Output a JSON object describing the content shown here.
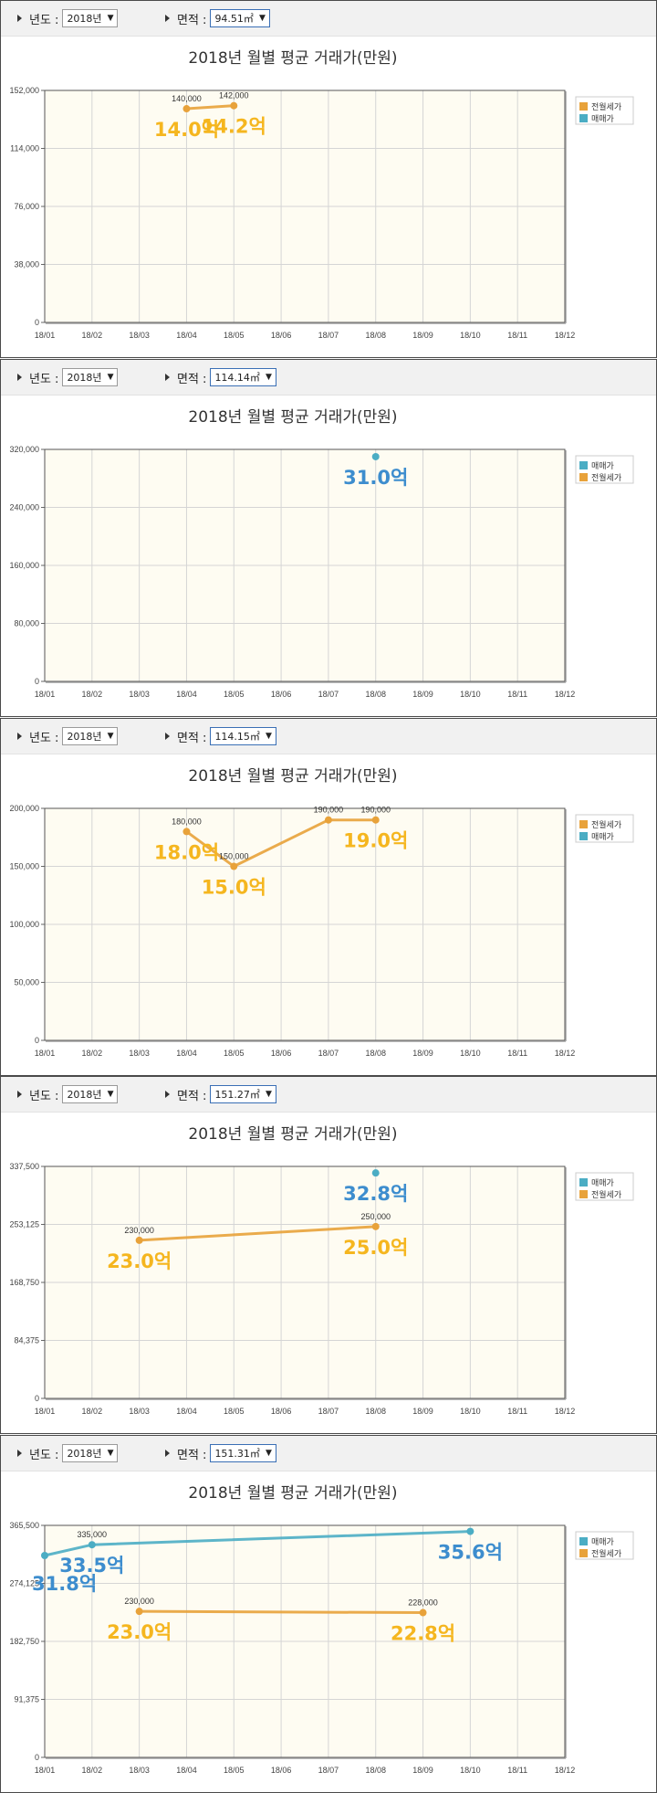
{
  "toolbar_labels": {
    "year": "년도 :",
    "area": "면적 :"
  },
  "colors": {
    "jeonwol": "#E8A23A",
    "maemae": "#4BADC4",
    "big_jeonwol": "#F5B61F",
    "big_maemae": "#3D8DCE",
    "plot_bg": "#FEFCF2",
    "grid": "#D5D5D5"
  },
  "panels": [
    {
      "year": "2018년",
      "area": "94.51㎡",
      "chart_data": {
        "type": "line",
        "title": "2018년 월별 평균 거래가(만원)",
        "categories": [
          "18/01",
          "18/02",
          "18/03",
          "18/04",
          "18/05",
          "18/06",
          "18/07",
          "18/08",
          "18/09",
          "18/10",
          "18/11",
          "18/12"
        ],
        "ylim": [
          0,
          152000
        ],
        "yticks": [
          "0",
          "38,000",
          "76,000",
          "114,000",
          "152,000"
        ],
        "legend": [
          "전월세가",
          "매매가"
        ],
        "legend_position": "right",
        "series": [
          {
            "name": "전월세가",
            "points": [
              {
                "x": 3,
                "y": 140000,
                "label": "140,000",
                "big": "14.0억"
              },
              {
                "x": 4,
                "y": 142000,
                "label": "142,000",
                "big": "14.2억"
              }
            ]
          }
        ]
      }
    },
    {
      "year": "2018년",
      "area": "114.14㎡",
      "chart_data": {
        "type": "line",
        "title": "2018년 월별 평균 거래가(만원)",
        "categories": [
          "18/01",
          "18/02",
          "18/03",
          "18/04",
          "18/05",
          "18/06",
          "18/07",
          "18/08",
          "18/09",
          "18/10",
          "18/11",
          "18/12"
        ],
        "ylim": [
          0,
          320000
        ],
        "yticks": [
          "0",
          "80,000",
          "160,000",
          "240,000",
          "320,000"
        ],
        "legend": [
          "매매가",
          "전월세가"
        ],
        "legend_position": "right",
        "series": [
          {
            "name": "매매가",
            "points": [
              {
                "x": 7,
                "y": 310000,
                "label": "",
                "big": "31.0억"
              }
            ]
          }
        ]
      }
    },
    {
      "year": "2018년",
      "area": "114.15㎡",
      "chart_data": {
        "type": "line",
        "title": "2018년 월별 평균 거래가(만원)",
        "categories": [
          "18/01",
          "18/02",
          "18/03",
          "18/04",
          "18/05",
          "18/06",
          "18/07",
          "18/08",
          "18/09",
          "18/10",
          "18/11",
          "18/12"
        ],
        "ylim": [
          0,
          200000
        ],
        "yticks": [
          "0",
          "50,000",
          "100,000",
          "150,000",
          "200,000"
        ],
        "legend": [
          "전월세가",
          "매매가"
        ],
        "legend_position": "right",
        "series": [
          {
            "name": "전월세가",
            "points": [
              {
                "x": 3,
                "y": 180000,
                "label": "180,000",
                "big": "18.0억"
              },
              {
                "x": 4,
                "y": 150000,
                "label": "150,000",
                "big": "15.0억"
              },
              {
                "x": 6,
                "y": 190000,
                "label": "190,000",
                "big": ""
              },
              {
                "x": 7,
                "y": 190000,
                "label": "190,000",
                "big": "19.0억"
              }
            ]
          }
        ]
      }
    },
    {
      "year": "2018년",
      "area": "151.27㎡",
      "chart_data": {
        "type": "line",
        "title": "2018년 월별 평균 거래가(만원)",
        "categories": [
          "18/01",
          "18/02",
          "18/03",
          "18/04",
          "18/05",
          "18/06",
          "18/07",
          "18/08",
          "18/09",
          "18/10",
          "18/11",
          "18/12"
        ],
        "ylim": [
          0,
          337500
        ],
        "yticks": [
          "0",
          "84,375",
          "168,750",
          "253,125",
          "337,500"
        ],
        "legend": [
          "매매가",
          "전월세가"
        ],
        "legend_position": "right",
        "series": [
          {
            "name": "매매가",
            "points": [
              {
                "x": 7,
                "y": 328000,
                "label": "",
                "big": "32.8억"
              }
            ]
          },
          {
            "name": "전월세가",
            "points": [
              {
                "x": 2,
                "y": 230000,
                "label": "230,000",
                "big": "23.0억"
              },
              {
                "x": 7,
                "y": 250000,
                "label": "250,000",
                "big": "25.0억"
              }
            ]
          }
        ]
      }
    },
    {
      "year": "2018년",
      "area": "151.31㎡",
      "chart_data": {
        "type": "line",
        "title": "2018년 월별 평균 거래가(만원)",
        "categories": [
          "18/01",
          "18/02",
          "18/03",
          "18/04",
          "18/05",
          "18/06",
          "18/07",
          "18/08",
          "18/09",
          "18/10",
          "18/11",
          "18/12"
        ],
        "ylim": [
          0,
          365500
        ],
        "yticks": [
          "0",
          "91,375",
          "182,750",
          "274,125",
          "365,500"
        ],
        "legend": [
          "매매가",
          "전월세가"
        ],
        "legend_position": "right",
        "series": [
          {
            "name": "매매가",
            "points": [
              {
                "x": 0,
                "y": 318000,
                "label": "",
                "big": "31.8억"
              },
              {
                "x": 1,
                "y": 335000,
                "label": "335,000",
                "big": "33.5억"
              },
              {
                "x": 9,
                "y": 356000,
                "label": "",
                "big": "35.6억"
              }
            ]
          },
          {
            "name": "전월세가",
            "points": [
              {
                "x": 2,
                "y": 230000,
                "label": "230,000",
                "big": "23.0억"
              },
              {
                "x": 8,
                "y": 228000,
                "label": "228,000",
                "big": "22.8억"
              }
            ]
          }
        ]
      }
    }
  ]
}
